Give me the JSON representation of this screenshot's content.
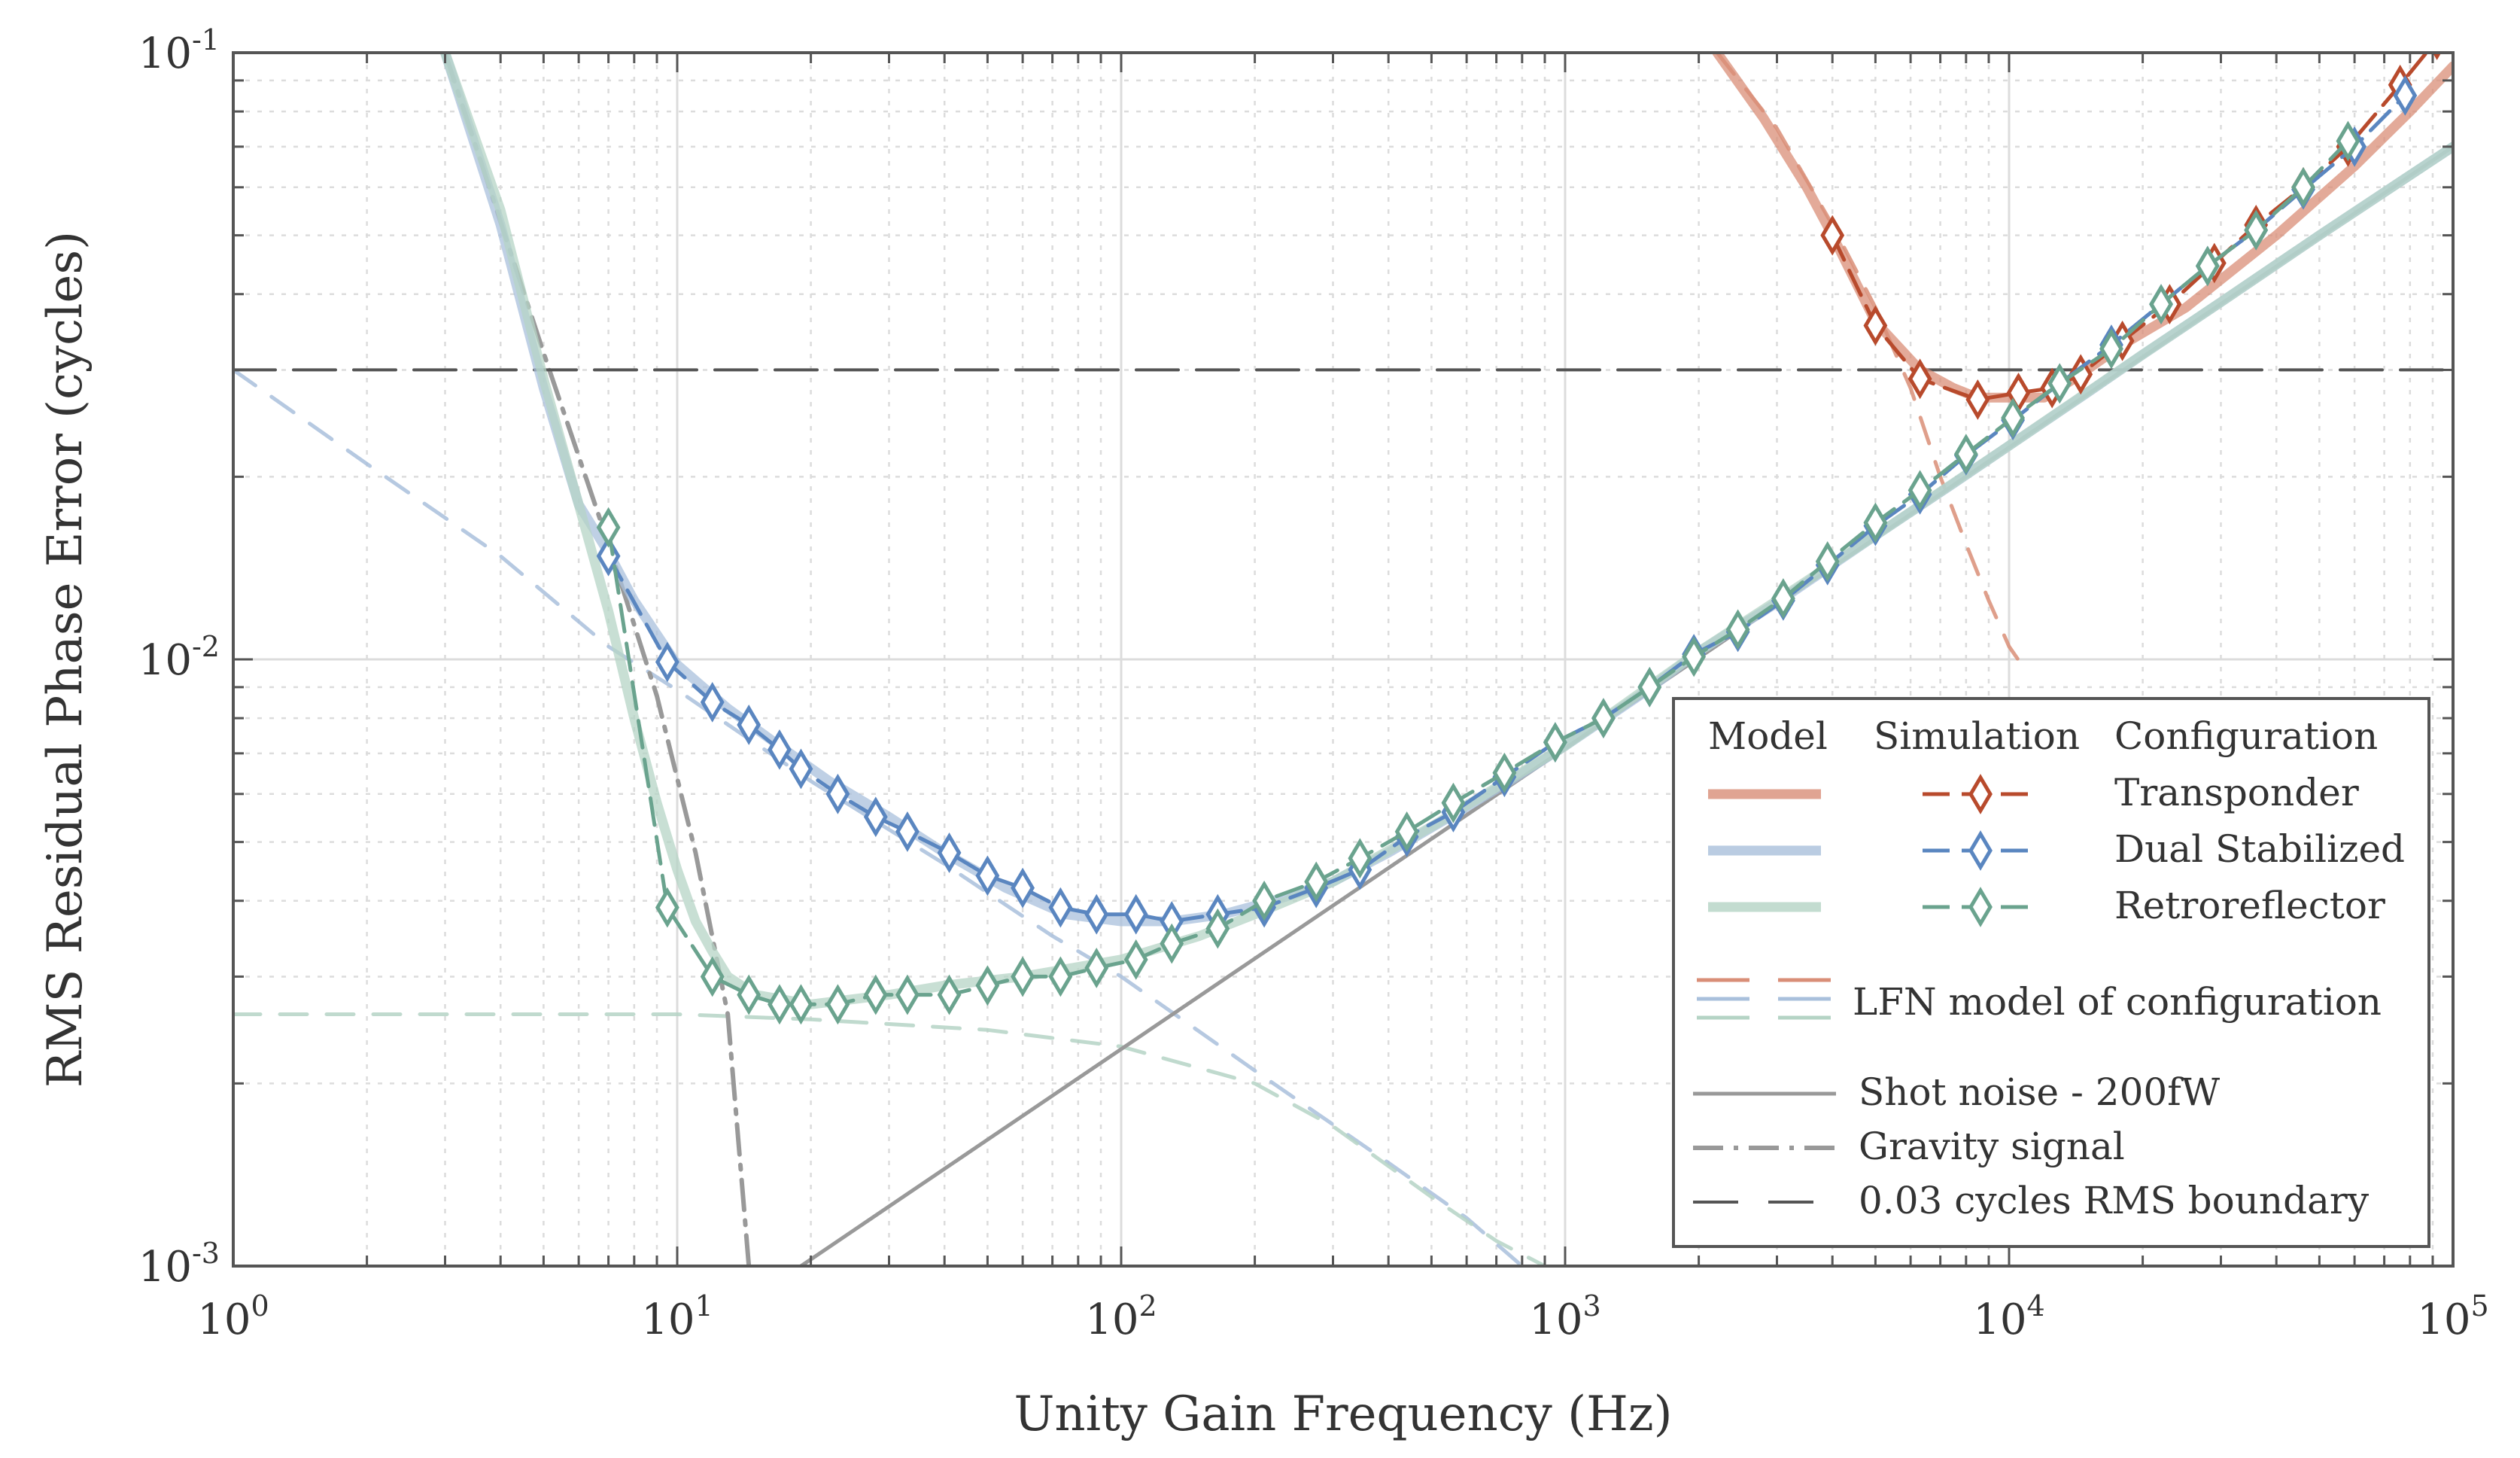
{
  "chart_data": {
    "type": "line",
    "title": "",
    "xlabel": "Unity Gain Frequency (Hz)",
    "ylabel": "RMS Residual Phase Error (cycles)",
    "xscale": "log",
    "yscale": "log",
    "xlim": [
      1,
      100000
    ],
    "ylim": [
      0.001,
      0.1
    ],
    "grid": true,
    "x_ticks": [
      {
        "value": 1,
        "base": "10",
        "exp": "0"
      },
      {
        "value": 10,
        "base": "10",
        "exp": "1"
      },
      {
        "value": 100,
        "base": "10",
        "exp": "2"
      },
      {
        "value": 1000,
        "base": "10",
        "exp": "3"
      },
      {
        "value": 10000,
        "base": "10",
        "exp": "4"
      },
      {
        "value": 100000,
        "base": "10",
        "exp": "5"
      }
    ],
    "y_ticks": [
      {
        "value": 0.001,
        "base": "10",
        "exp": "-3"
      },
      {
        "value": 0.01,
        "base": "10",
        "exp": "-2"
      },
      {
        "value": 0.1,
        "base": "10",
        "exp": "-1"
      }
    ],
    "colors": {
      "transponder_model": "#d98e77",
      "transponder_sim": "#b84a2c",
      "dual_model": "#a9c0dc",
      "dual_sim": "#5a86c0",
      "retro_model": "#b5d4c5",
      "retro_sim": "#6aa38e",
      "shot": "#999999",
      "gravity": "#999999",
      "boundary": "#555555",
      "axis": "#555555",
      "grid": "#dcdcdc"
    },
    "legend": {
      "position": "bottom-right",
      "col_model": "Model",
      "col_simulation": "Simulation",
      "col_configuration": "Configuration",
      "configs": [
        "Transponder",
        "Dual Stabilized",
        "Retroreflector"
      ],
      "lfn_label": "LFN model of configuration",
      "shot_label": "Shot noise - 200fW",
      "gravity_label": "Gravity signal",
      "boundary_label": "0.03 cycles RMS boundary"
    },
    "series": [
      {
        "name": "Transponder (model)",
        "style": "model",
        "color_key": "transponder_model",
        "x": [
          2200,
          2800,
          3500,
          4000,
          5000,
          6300,
          7500,
          8500,
          10000,
          12000,
          14000,
          18000,
          25000,
          40000,
          60000,
          80000,
          100000
        ],
        "y": [
          0.1,
          0.078,
          0.06,
          0.05,
          0.036,
          0.03,
          0.028,
          0.027,
          0.027,
          0.027,
          0.029,
          0.033,
          0.038,
          0.05,
          0.065,
          0.08,
          0.095
        ]
      },
      {
        "name": "Transponder (simulation)",
        "style": "sim",
        "color_key": "transponder_sim",
        "x": [
          4000,
          5000,
          6300,
          8500,
          10500,
          12500,
          14500,
          18000,
          23000,
          29000,
          36000,
          46000,
          58000,
          76000,
          92000
        ],
        "y": [
          0.05,
          0.0355,
          0.029,
          0.0268,
          0.0275,
          0.028,
          0.0295,
          0.0335,
          0.0385,
          0.045,
          0.052,
          0.06,
          0.07,
          0.0885,
          0.105
        ]
      },
      {
        "name": "Transponder (LFN model)",
        "style": "lfn",
        "color_key": "transponder_model",
        "x": [
          2200,
          3000,
          4000,
          5000,
          6000,
          7000,
          8000,
          9000,
          10000,
          11000
        ],
        "y": [
          0.1,
          0.075,
          0.052,
          0.038,
          0.028,
          0.02,
          0.0155,
          0.0125,
          0.0105,
          0.0095
        ]
      },
      {
        "name": "Dual Stabilized (model)",
        "style": "model",
        "color_key": "dual_model",
        "x": [
          3,
          4,
          5,
          6,
          7,
          8,
          10,
          13,
          17,
          22,
          30,
          40,
          55,
          75,
          100,
          130,
          170,
          220,
          300,
          400,
          550,
          750,
          1000,
          1500,
          2000,
          3000,
          5000,
          7500,
          10000,
          15000,
          20000,
          30000,
          50000,
          100000
        ],
        "y": [
          0.1,
          0.052,
          0.028,
          0.018,
          0.015,
          0.0125,
          0.0098,
          0.0083,
          0.0072,
          0.0063,
          0.0055,
          0.0048,
          0.0042,
          0.0038,
          0.0037,
          0.0037,
          0.0038,
          0.004,
          0.0043,
          0.0048,
          0.0055,
          0.0063,
          0.0072,
          0.0088,
          0.0103,
          0.0124,
          0.016,
          0.0195,
          0.0225,
          0.0275,
          0.0318,
          0.0388,
          0.05,
          0.07
        ]
      },
      {
        "name": "Dual Stabilized (simulation)",
        "style": "sim",
        "color_key": "dual_sim",
        "x": [
          7,
          9.5,
          12,
          14.5,
          17,
          19,
          23,
          28,
          33,
          41,
          50,
          60,
          73,
          88,
          108,
          130,
          165,
          210,
          275,
          345,
          440,
          560,
          730,
          950,
          1220,
          1550,
          1950,
          2450,
          3100,
          3900,
          5000,
          6300,
          8000,
          10200,
          13000,
          17000,
          22000,
          28000,
          36000,
          46000,
          60000,
          78000
        ],
        "y": [
          0.0148,
          0.0099,
          0.0085,
          0.0078,
          0.0071,
          0.0066,
          0.006,
          0.0055,
          0.0052,
          0.0048,
          0.0044,
          0.0042,
          0.0039,
          0.0038,
          0.0038,
          0.0037,
          0.0038,
          0.0039,
          0.0042,
          0.0045,
          0.0051,
          0.0056,
          0.0064,
          0.0073,
          0.008,
          0.009,
          0.0102,
          0.0111,
          0.0125,
          0.0143,
          0.0166,
          0.0187,
          0.0217,
          0.0248,
          0.0285,
          0.033,
          0.0385,
          0.0445,
          0.051,
          0.0595,
          0.07,
          0.085
        ]
      },
      {
        "name": "Dual Stabilized (LFN model)",
        "style": "lfn",
        "color_key": "dual_model",
        "x": [
          1,
          2,
          4,
          7,
          10,
          20,
          40,
          70,
          100,
          200,
          400,
          600,
          800
        ],
        "y": [
          0.03,
          0.021,
          0.0148,
          0.0105,
          0.0089,
          0.0063,
          0.0046,
          0.0035,
          0.003,
          0.0021,
          0.00148,
          0.0012,
          0.001
        ]
      },
      {
        "name": "Retroreflector (model)",
        "style": "model",
        "color_key": "retro_model",
        "x": [
          3,
          4,
          5,
          6,
          7,
          8,
          9,
          10,
          11,
          12,
          13,
          15,
          20,
          30,
          40,
          60,
          100,
          150,
          200,
          300,
          500,
          1000,
          2000,
          3000,
          5000,
          10000,
          20000,
          30000,
          50000,
          100000
        ],
        "y": [
          0.1,
          0.055,
          0.029,
          0.018,
          0.012,
          0.008,
          0.0058,
          0.0045,
          0.0037,
          0.0033,
          0.003,
          0.0028,
          0.0027,
          0.0028,
          0.0029,
          0.003,
          0.0032,
          0.0035,
          0.0038,
          0.0043,
          0.0053,
          0.0072,
          0.0103,
          0.0125,
          0.016,
          0.0225,
          0.0318,
          0.0388,
          0.05,
          0.07
        ]
      },
      {
        "name": "Retroreflector (simulation)",
        "style": "sim",
        "color_key": "retro_sim",
        "x": [
          7,
          9.5,
          12,
          14.5,
          17,
          19,
          23,
          28,
          33,
          41,
          50,
          60,
          73,
          88,
          108,
          130,
          165,
          210,
          275,
          345,
          440,
          560,
          730,
          950,
          1220,
          1550,
          1950,
          2450,
          3100,
          3900,
          5000,
          6300,
          8000,
          10200,
          13000,
          17000,
          22000,
          28000,
          36000,
          46000,
          58000
        ],
        "y": [
          0.0165,
          0.0039,
          0.003,
          0.0028,
          0.0027,
          0.0027,
          0.0027,
          0.0028,
          0.0028,
          0.0028,
          0.0029,
          0.003,
          0.003,
          0.0031,
          0.0032,
          0.0034,
          0.0036,
          0.004,
          0.0043,
          0.0047,
          0.0052,
          0.0058,
          0.0065,
          0.0073,
          0.008,
          0.009,
          0.0101,
          0.0112,
          0.0126,
          0.0145,
          0.0168,
          0.019,
          0.0218,
          0.025,
          0.0285,
          0.0325,
          0.0385,
          0.0445,
          0.051,
          0.06,
          0.0715
        ]
      },
      {
        "name": "Retroreflector (LFN model)",
        "style": "lfn",
        "color_key": "retro_model",
        "x": [
          1,
          3,
          10,
          20,
          50,
          100,
          200,
          300,
          500,
          700,
          900
        ],
        "y": [
          0.0026,
          0.0026,
          0.0026,
          0.00255,
          0.00245,
          0.0023,
          0.002,
          0.0017,
          0.0013,
          0.0011,
          0.001
        ]
      },
      {
        "name": "Shot noise - 200fW",
        "style": "solid",
        "color_key": "shot",
        "x": [
          19,
          100000
        ],
        "y": [
          0.001,
          0.07
        ]
      },
      {
        "name": "Gravity signal",
        "style": "dashdot",
        "color_key": "gravity",
        "x": [
          3,
          5,
          7,
          9,
          11,
          13,
          14.5
        ],
        "y": [
          0.1,
          0.032,
          0.0155,
          0.0087,
          0.0048,
          0.0026,
          0.001
        ]
      },
      {
        "name": "0.03 cycles RMS boundary",
        "style": "boundary",
        "color_key": "boundary",
        "x": [
          1,
          100000
        ],
        "y": [
          0.03,
          0.03
        ]
      }
    ]
  }
}
